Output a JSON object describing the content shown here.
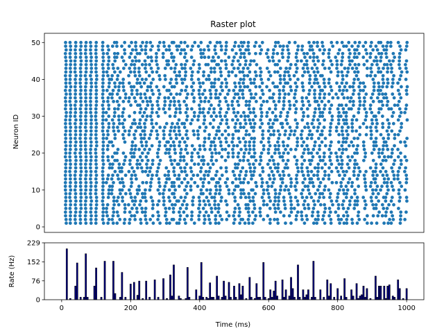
{
  "chart_data": [
    {
      "type": "scatter",
      "title": "Raster plot",
      "xlabel": "",
      "ylabel": "Neuron ID",
      "xlim": [
        -50,
        1050
      ],
      "ylim": [
        -1.5,
        52.5
      ],
      "yticks": [
        "0",
        "10",
        "20",
        "30",
        "40",
        "50"
      ],
      "grid": false,
      "marker_color": "#1f77b4",
      "neurons": {
        "first_id": 1,
        "last_id": 50
      },
      "spike_times_ms": [
        12,
        25,
        40,
        55,
        70,
        85,
        100,
        120,
        135,
        150,
        165,
        180,
        200,
        215,
        230,
        245,
        260,
        280,
        300,
        315,
        330,
        345,
        360,
        380,
        400,
        415,
        430,
        445,
        460,
        480,
        500,
        515,
        530,
        545,
        560,
        580,
        600,
        615,
        630,
        645,
        660,
        680,
        700,
        715,
        730,
        745,
        760,
        780,
        800,
        815,
        830,
        845,
        860,
        880,
        900,
        915,
        930,
        945,
        960,
        980,
        1000
      ]
    },
    {
      "type": "bar",
      "title": "",
      "xlabel": "Time (ms)",
      "ylabel": "Rate (Hz)",
      "xlim": [
        -50,
        1050
      ],
      "ylim": [
        0,
        229
      ],
      "xticks": [
        "0",
        "200",
        "400",
        "600",
        "800",
        "1000"
      ],
      "yticks": [
        "0",
        "76",
        "152",
        "229"
      ],
      "bar_color": "#00008b",
      "bar_edge_color": "#000000",
      "bin_width_ms": 5,
      "bins": [
        {
          "t": 15,
          "rate": 205
        },
        {
          "t": 25,
          "rate": 5
        },
        {
          "t": 40,
          "rate": 55
        },
        {
          "t": 45,
          "rate": 148
        },
        {
          "t": 55,
          "rate": 10
        },
        {
          "t": 65,
          "rate": 10
        },
        {
          "t": 70,
          "rate": 185
        },
        {
          "t": 75,
          "rate": 10
        },
        {
          "t": 95,
          "rate": 55
        },
        {
          "t": 100,
          "rate": 128
        },
        {
          "t": 115,
          "rate": 10
        },
        {
          "t": 125,
          "rate": 155
        },
        {
          "t": 150,
          "rate": 155
        },
        {
          "t": 155,
          "rate": 25
        },
        {
          "t": 170,
          "rate": 10
        },
        {
          "t": 175,
          "rate": 110
        },
        {
          "t": 185,
          "rate": 10
        },
        {
          "t": 200,
          "rate": 63
        },
        {
          "t": 210,
          "rate": 70
        },
        {
          "t": 220,
          "rate": 18
        },
        {
          "t": 225,
          "rate": 75
        },
        {
          "t": 235,
          "rate": 5
        },
        {
          "t": 245,
          "rate": 75
        },
        {
          "t": 255,
          "rate": 10
        },
        {
          "t": 270,
          "rate": 80
        },
        {
          "t": 280,
          "rate": 10
        },
        {
          "t": 295,
          "rate": 85
        },
        {
          "t": 305,
          "rate": 5
        },
        {
          "t": 315,
          "rate": 100
        },
        {
          "t": 320,
          "rate": 15
        },
        {
          "t": 325,
          "rate": 140
        },
        {
          "t": 340,
          "rate": 15
        },
        {
          "t": 345,
          "rate": 5
        },
        {
          "t": 360,
          "rate": 5
        },
        {
          "t": 365,
          "rate": 130
        },
        {
          "t": 370,
          "rate": 10
        },
        {
          "t": 390,
          "rate": 40
        },
        {
          "t": 400,
          "rate": 15
        },
        {
          "t": 405,
          "rate": 150
        },
        {
          "t": 410,
          "rate": 10
        },
        {
          "t": 420,
          "rate": 10
        },
        {
          "t": 425,
          "rate": 5
        },
        {
          "t": 430,
          "rate": 68
        },
        {
          "t": 435,
          "rate": 10
        },
        {
          "t": 440,
          "rate": 10
        },
        {
          "t": 450,
          "rate": 95
        },
        {
          "t": 455,
          "rate": 15
        },
        {
          "t": 465,
          "rate": 10
        },
        {
          "t": 470,
          "rate": 75
        },
        {
          "t": 475,
          "rate": 15
        },
        {
          "t": 485,
          "rate": 70
        },
        {
          "t": 490,
          "rate": 10
        },
        {
          "t": 500,
          "rate": 55
        },
        {
          "t": 505,
          "rate": 10
        },
        {
          "t": 515,
          "rate": 65
        },
        {
          "t": 520,
          "rate": 20
        },
        {
          "t": 525,
          "rate": 55
        },
        {
          "t": 535,
          "rate": 5
        },
        {
          "t": 545,
          "rate": 90
        },
        {
          "t": 550,
          "rate": 10
        },
        {
          "t": 560,
          "rate": 5
        },
        {
          "t": 565,
          "rate": 65
        },
        {
          "t": 570,
          "rate": 10
        },
        {
          "t": 575,
          "rate": 10
        },
        {
          "t": 585,
          "rate": 150
        },
        {
          "t": 590,
          "rate": 10
        },
        {
          "t": 600,
          "rate": 5
        },
        {
          "t": 605,
          "rate": 40
        },
        {
          "t": 610,
          "rate": 10
        },
        {
          "t": 615,
          "rate": 35
        },
        {
          "t": 620,
          "rate": 75
        },
        {
          "t": 625,
          "rate": 15
        },
        {
          "t": 640,
          "rate": 80
        },
        {
          "t": 645,
          "rate": 10
        },
        {
          "t": 650,
          "rate": 40
        },
        {
          "t": 660,
          "rate": 15
        },
        {
          "t": 665,
          "rate": 90
        },
        {
          "t": 670,
          "rate": 45
        },
        {
          "t": 675,
          "rate": 10
        },
        {
          "t": 685,
          "rate": 140
        },
        {
          "t": 690,
          "rate": 10
        },
        {
          "t": 700,
          "rate": 40
        },
        {
          "t": 705,
          "rate": 10
        },
        {
          "t": 710,
          "rate": 20
        },
        {
          "t": 715,
          "rate": 40
        },
        {
          "t": 725,
          "rate": 10
        },
        {
          "t": 730,
          "rate": 155
        },
        {
          "t": 735,
          "rate": 10
        },
        {
          "t": 750,
          "rate": 40
        },
        {
          "t": 760,
          "rate": 10
        },
        {
          "t": 770,
          "rate": 80
        },
        {
          "t": 775,
          "rate": 15
        },
        {
          "t": 780,
          "rate": 65
        },
        {
          "t": 790,
          "rate": 10
        },
        {
          "t": 800,
          "rate": 45
        },
        {
          "t": 810,
          "rate": 15
        },
        {
          "t": 820,
          "rate": 85
        },
        {
          "t": 825,
          "rate": 10
        },
        {
          "t": 840,
          "rate": 40
        },
        {
          "t": 845,
          "rate": 15
        },
        {
          "t": 855,
          "rate": 65
        },
        {
          "t": 860,
          "rate": 5
        },
        {
          "t": 865,
          "rate": 15
        },
        {
          "t": 870,
          "rate": 20
        },
        {
          "t": 875,
          "rate": 55
        },
        {
          "t": 880,
          "rate": 10
        },
        {
          "t": 885,
          "rate": 45
        },
        {
          "t": 895,
          "rate": 5
        },
        {
          "t": 910,
          "rate": 95
        },
        {
          "t": 915,
          "rate": 10
        },
        {
          "t": 920,
          "rate": 55
        },
        {
          "t": 925,
          "rate": 55
        },
        {
          "t": 935,
          "rate": 55
        },
        {
          "t": 940,
          "rate": 5
        },
        {
          "t": 945,
          "rate": 55
        },
        {
          "t": 950,
          "rate": 60
        },
        {
          "t": 960,
          "rate": 15
        },
        {
          "t": 965,
          "rate": 10
        },
        {
          "t": 975,
          "rate": 80
        },
        {
          "t": 980,
          "rate": 45
        },
        {
          "t": 990,
          "rate": 5
        },
        {
          "t": 1000,
          "rate": 45
        }
      ]
    }
  ]
}
